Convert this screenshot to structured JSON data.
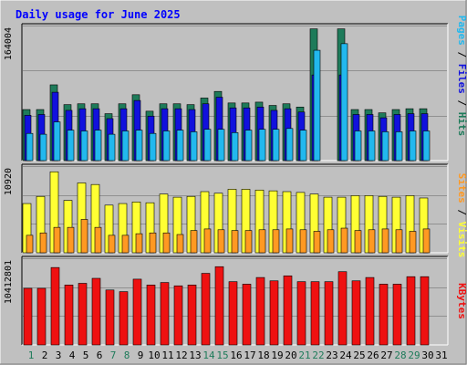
{
  "chart_data": {
    "type": "bar",
    "title": "Daily usage for June 2025",
    "days": [
      "1",
      "2",
      "3",
      "4",
      "5",
      "6",
      "7",
      "8",
      "9",
      "10",
      "11",
      "12",
      "13",
      "14",
      "15",
      "16",
      "17",
      "18",
      "19",
      "20",
      "21",
      "22",
      "23",
      "24",
      "25",
      "26",
      "27",
      "28",
      "29",
      "30",
      "31"
    ],
    "weekend_days": [
      "1",
      "7",
      "8",
      "14",
      "15",
      "21",
      "22",
      "28",
      "29"
    ],
    "hits_files_pages": {
      "ylabel_parts": [
        "Pages",
        "Files",
        "Hits"
      ],
      "tick_label": "164004",
      "ylim": [
        0,
        164004
      ],
      "series": [
        {
          "name": "Hits",
          "color": "#1E7B5A",
          "values": [
            62000,
            62000,
            92000,
            68000,
            69000,
            69000,
            57000,
            69000,
            80000,
            60000,
            69000,
            69000,
            68000,
            76000,
            84000,
            70000,
            70000,
            71000,
            67000,
            69000,
            65000,
            160000,
            null,
            160000,
            62000,
            62000,
            58000,
            62000,
            63000,
            63000,
            null
          ]
        },
        {
          "name": "Files",
          "color": "#1111DD",
          "values": [
            55000,
            56000,
            83000,
            61000,
            63000,
            63000,
            51000,
            63000,
            73000,
            54000,
            63000,
            63000,
            62000,
            69000,
            77000,
            64000,
            64000,
            65000,
            61000,
            63000,
            59000,
            104000,
            null,
            104000,
            56000,
            56000,
            52000,
            56000,
            57000,
            57000,
            null
          ]
        },
        {
          "name": "Pages",
          "color": "#22B8EE",
          "values": [
            33000,
            32000,
            47000,
            37000,
            36000,
            37000,
            32000,
            36000,
            37000,
            33000,
            36000,
            37000,
            35000,
            38000,
            38000,
            34000,
            37000,
            38000,
            38000,
            39000,
            37000,
            134000,
            null,
            142000,
            36000,
            36000,
            35000,
            35000,
            36000,
            36000,
            null
          ]
        }
      ]
    },
    "visits_sites": {
      "ylabel_parts": [
        "Sites",
        "Visits"
      ],
      "tick_label": "10920",
      "ylim": [
        0,
        10920
      ],
      "series": [
        {
          "name": "Visits",
          "color": "#FFFF33",
          "values": [
            6200,
            7100,
            10200,
            6600,
            8800,
            8600,
            6000,
            6200,
            6400,
            6300,
            7400,
            7000,
            7100,
            7700,
            7500,
            8000,
            8000,
            7900,
            7800,
            7700,
            7600,
            7400,
            7000,
            7000,
            7200,
            7200,
            7100,
            7000,
            7200,
            6900,
            null
          ]
        },
        {
          "name": "Sites",
          "color": "#FF9922",
          "values": [
            2200,
            2500,
            3200,
            3200,
            4200,
            3200,
            2200,
            2200,
            2400,
            2500,
            2500,
            2300,
            2800,
            3000,
            2900,
            2800,
            2800,
            2900,
            2900,
            3000,
            2900,
            2700,
            2900,
            3100,
            2800,
            2900,
            3000,
            2900,
            2700,
            3000,
            null
          ]
        }
      ]
    },
    "kbytes": {
      "ylabel_parts": [
        "KBytes"
      ],
      "tick_label": "10412801",
      "ylim": [
        0,
        10412801
      ],
      "series": [
        {
          "name": "KBytes",
          "color": "#EE1111",
          "values": [
            6800000,
            6800000,
            9300000,
            7200000,
            7400000,
            8000000,
            6600000,
            6400000,
            7900000,
            7200000,
            7500000,
            7100000,
            7200000,
            8600000,
            9400000,
            7600000,
            7300000,
            8100000,
            7700000,
            8300000,
            7600000,
            7600000,
            7600000,
            8800000,
            7700000,
            8100000,
            7300000,
            7300000,
            8200000,
            8200000,
            null
          ]
        }
      ]
    }
  }
}
